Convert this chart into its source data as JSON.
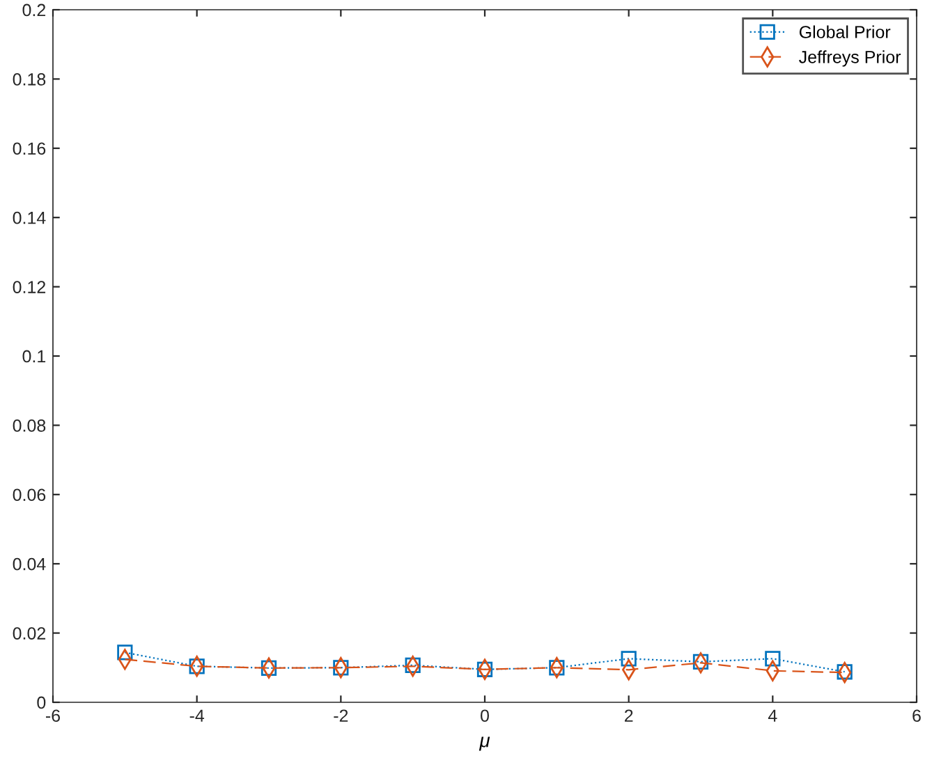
{
  "chart_data": {
    "type": "line",
    "xlabel": "μ",
    "x": [
      -5,
      -4,
      -3,
      -2,
      -1,
      0,
      1,
      2,
      3,
      4,
      5
    ],
    "series": [
      {
        "name": "Global Prior",
        "color": "#0072bd",
        "marker": "square",
        "line_style": "dotted",
        "values": [
          0.0144,
          0.0104,
          0.0099,
          0.01,
          0.0107,
          0.0095,
          0.01,
          0.0126,
          0.0117,
          0.0126,
          0.0088
        ]
      },
      {
        "name": "Jeffreys Prior",
        "color": "#d95319",
        "marker": "diamond",
        "line_style": "dashed",
        "values": [
          0.0124,
          0.0104,
          0.0099,
          0.01,
          0.0104,
          0.0095,
          0.01,
          0.0094,
          0.0114,
          0.0091,
          0.0086
        ]
      }
    ],
    "xlim": [
      -6,
      6
    ],
    "xticks": [
      -6,
      -4,
      -2,
      0,
      2,
      4,
      6
    ],
    "ylim": [
      0,
      0.2
    ],
    "yticks": [
      0,
      0.02,
      0.04,
      0.06,
      0.08,
      0.1,
      0.12,
      0.14,
      0.16,
      0.18,
      0.2
    ],
    "grid": false,
    "legend": "top right"
  }
}
